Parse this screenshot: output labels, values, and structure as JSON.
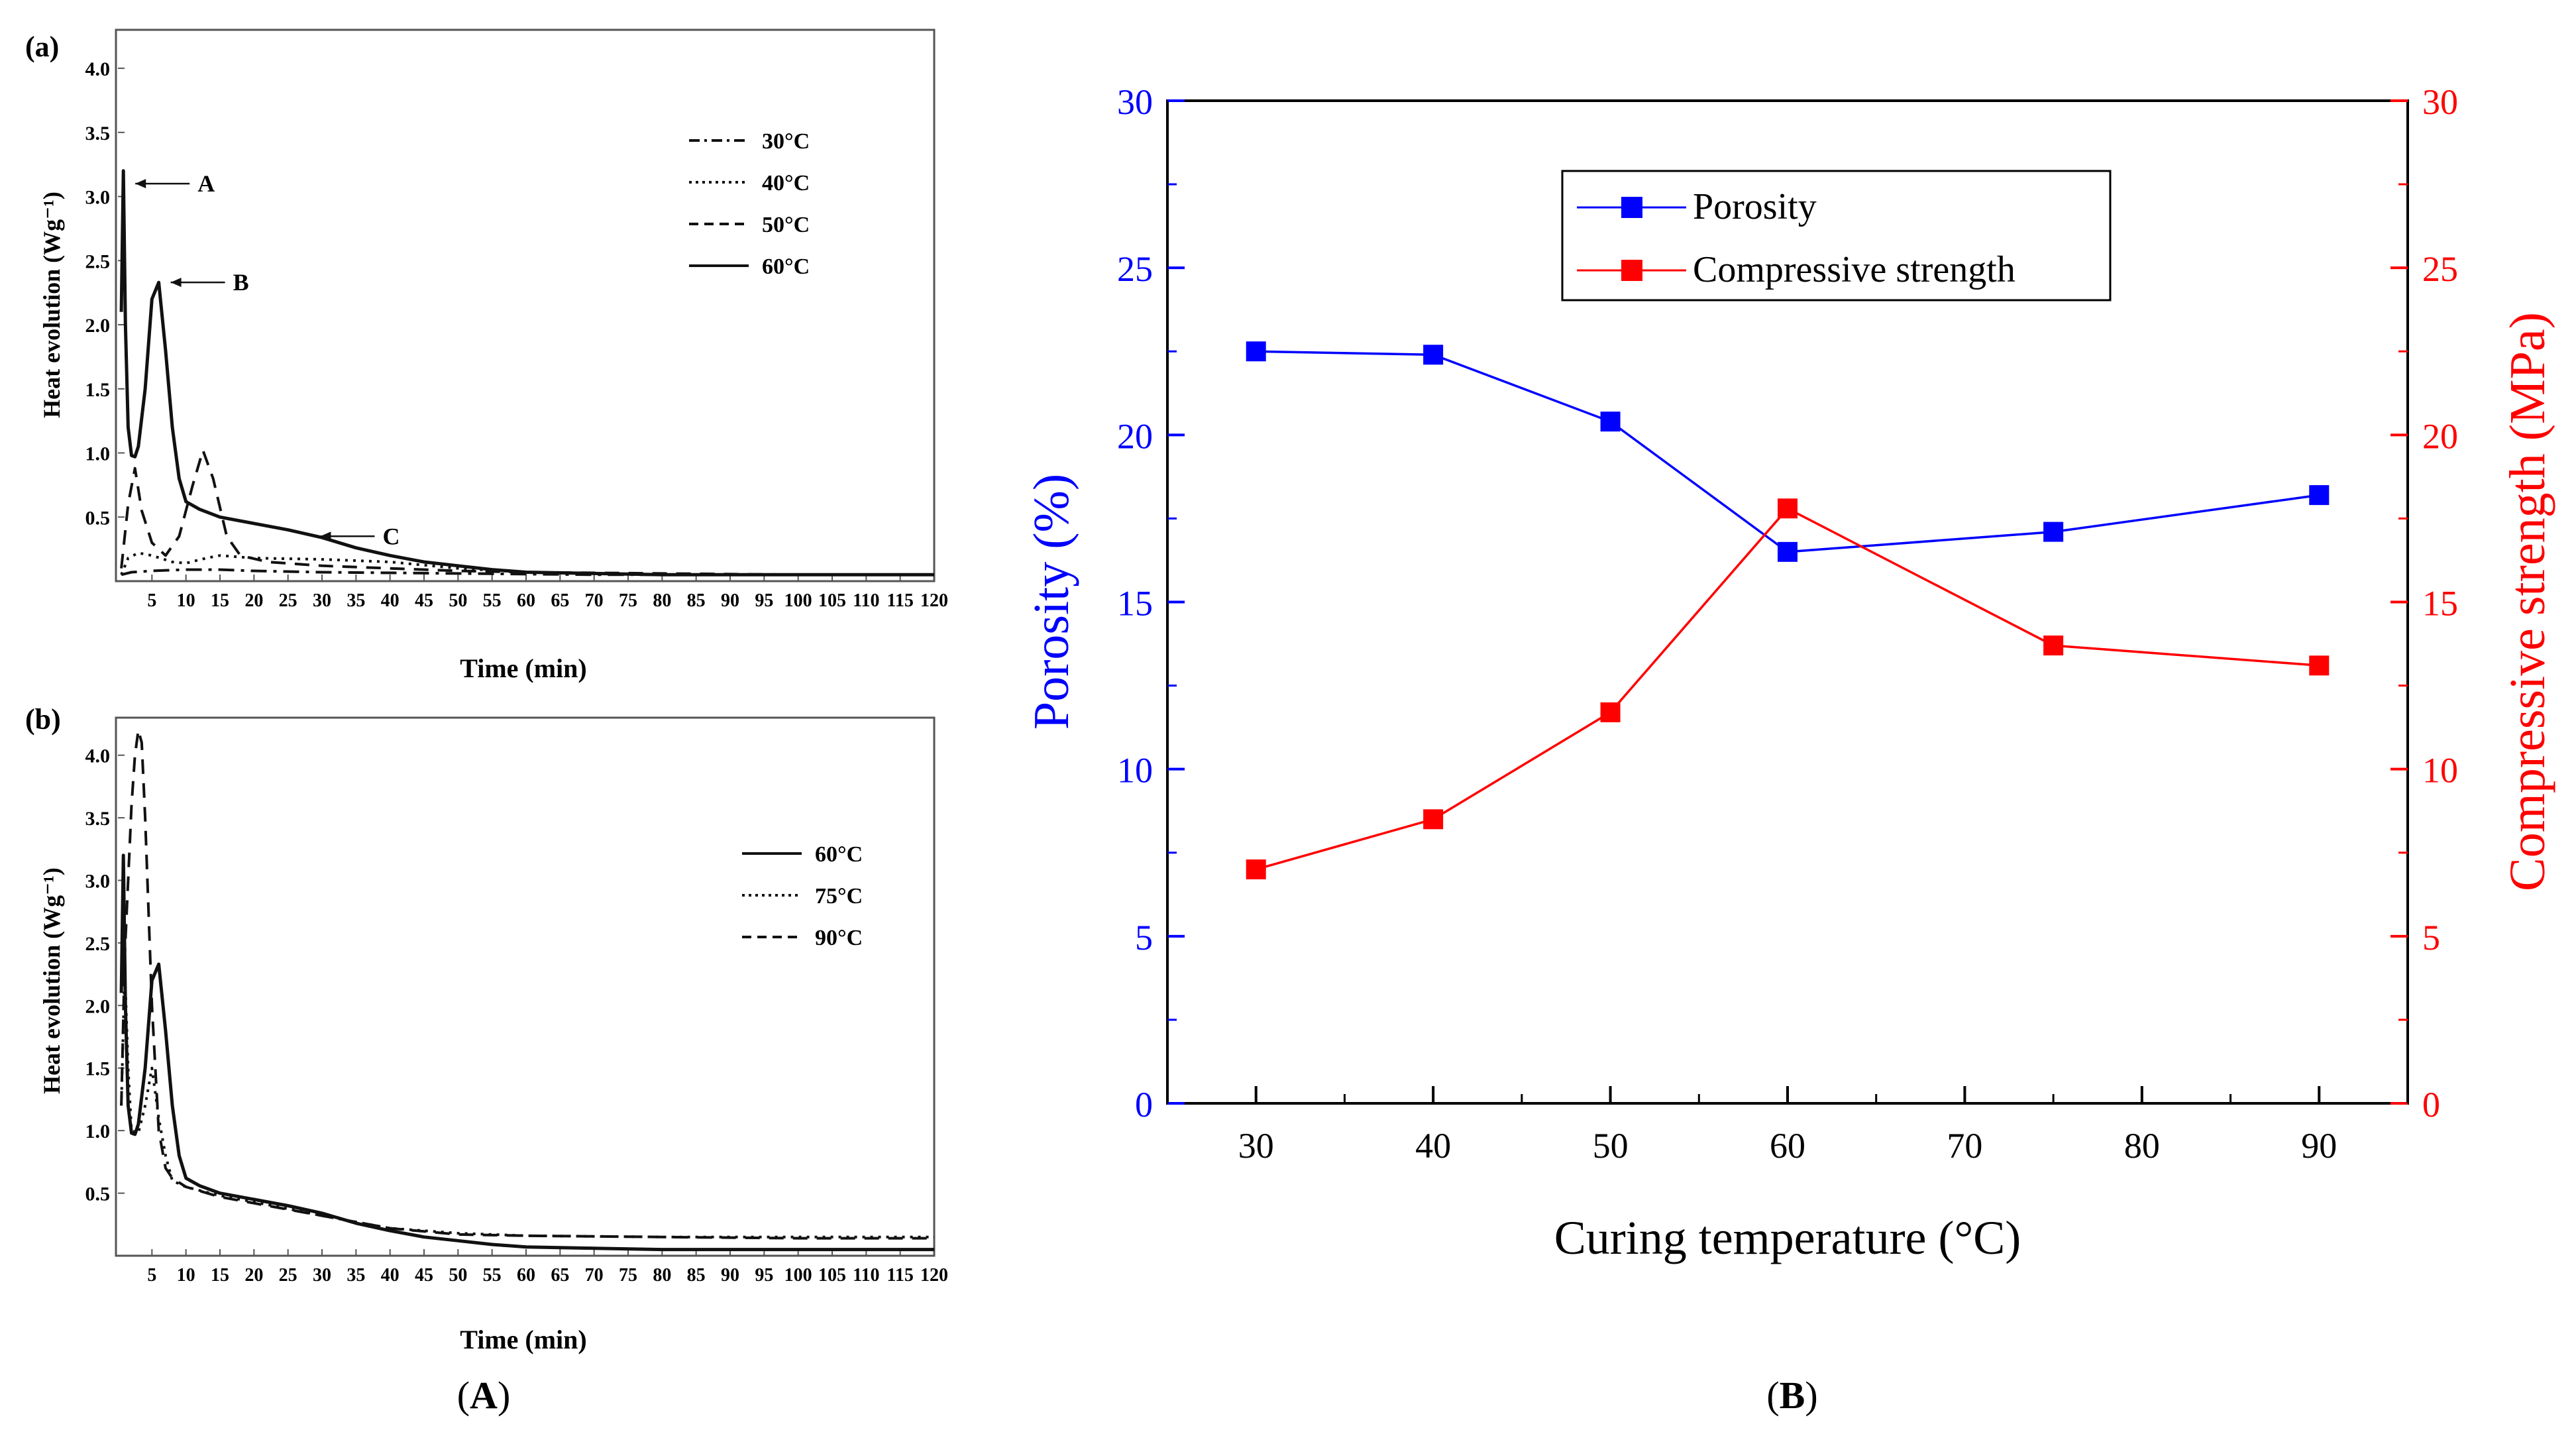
{
  "figure": {
    "panel_A_caption": "A",
    "panel_B_caption": "B",
    "colors": {
      "blue": "#0000ff",
      "red": "#ff0000",
      "black": "#000000"
    }
  },
  "chart_data": [
    {
      "id": "a",
      "type": "line",
      "panel_label": "(a)",
      "xlabel": "Time (min)",
      "ylabel": "Heat evolution (Wg⁻¹)",
      "xlim": [
        0,
        120
      ],
      "ylim": [
        0,
        4.3
      ],
      "xticks": [
        5,
        10,
        15,
        20,
        25,
        30,
        35,
        40,
        45,
        50,
        55,
        60,
        65,
        70,
        75,
        80,
        85,
        90,
        95,
        100,
        105,
        110,
        115,
        120
      ],
      "yticks": [
        0.5,
        1.0,
        1.5,
        2.0,
        2.5,
        3.0,
        3.5,
        4.0
      ],
      "legend": {
        "position": "top-right"
      },
      "series": [
        {
          "name": "30°C",
          "style": "dashdot",
          "x": [
            0.5,
            2,
            5,
            10,
            15,
            20,
            30,
            50,
            70,
            90,
            120
          ],
          "y": [
            0.05,
            0.07,
            0.08,
            0.09,
            0.09,
            0.08,
            0.07,
            0.06,
            0.05,
            0.05,
            0.05
          ]
        },
        {
          "name": "40°C",
          "style": "dotted",
          "x": [
            0.5,
            1.5,
            3,
            5,
            8,
            10,
            13,
            15,
            20,
            30,
            40,
            50,
            60,
            80,
            100,
            120
          ],
          "y": [
            0.05,
            0.18,
            0.22,
            0.2,
            0.15,
            0.14,
            0.18,
            0.2,
            0.18,
            0.17,
            0.15,
            0.1,
            0.07,
            0.05,
            0.05,
            0.05
          ]
        },
        {
          "name": "50°C",
          "style": "dashed",
          "x": [
            0.5,
            1.5,
            2.5,
            3.5,
            5,
            7,
            9,
            11,
            12.5,
            14,
            16,
            18,
            22,
            30,
            40,
            50,
            60,
            80,
            100,
            120
          ],
          "y": [
            0.1,
            0.6,
            0.88,
            0.55,
            0.3,
            0.2,
            0.35,
            0.75,
            1.02,
            0.8,
            0.35,
            0.2,
            0.15,
            0.12,
            0.1,
            0.08,
            0.07,
            0.06,
            0.05,
            0.05
          ]
        },
        {
          "name": "60°C",
          "style": "solid",
          "x": [
            0.5,
            0.8,
            1.1,
            1.5,
            2,
            2.5,
            3,
            4,
            5,
            6,
            7,
            8,
            9,
            10,
            12,
            15,
            20,
            25,
            30,
            35,
            40,
            45,
            50,
            55,
            60,
            70,
            80,
            90,
            100,
            110,
            120
          ],
          "y": [
            2.1,
            3.2,
            2.0,
            1.2,
            0.98,
            0.97,
            1.05,
            1.5,
            2.2,
            2.33,
            1.8,
            1.2,
            0.8,
            0.62,
            0.56,
            0.5,
            0.45,
            0.4,
            0.34,
            0.26,
            0.2,
            0.15,
            0.12,
            0.09,
            0.07,
            0.06,
            0.05,
            0.05,
            0.05,
            0.05,
            0.05
          ]
        }
      ],
      "annotations": [
        {
          "text": "A",
          "x": 0.8,
          "y": 3.1
        },
        {
          "text": "B",
          "x": 6,
          "y": 2.33
        },
        {
          "text": "C",
          "x": 28,
          "y": 0.35
        }
      ]
    },
    {
      "id": "b",
      "type": "line",
      "panel_label": "(b)",
      "xlabel": "Time (min)",
      "ylabel": "Heat   evolution   (Wg⁻¹)",
      "xlim": [
        0,
        120
      ],
      "ylim": [
        0,
        4.3
      ],
      "xticks": [
        5,
        10,
        15,
        20,
        25,
        30,
        35,
        40,
        45,
        50,
        55,
        60,
        65,
        70,
        75,
        80,
        85,
        90,
        95,
        100,
        105,
        110,
        115,
        120
      ],
      "yticks": [
        0.5,
        1.0,
        1.5,
        2.0,
        2.5,
        3.0,
        3.5,
        4.0
      ],
      "legend": {
        "position": "top-right"
      },
      "series": [
        {
          "name": "60°C",
          "style": "solid",
          "x": [
            0.5,
            0.8,
            1.1,
            1.5,
            2,
            2.5,
            3,
            4,
            5,
            6,
            7,
            8,
            9,
            10,
            12,
            15,
            20,
            25,
            30,
            35,
            40,
            45,
            50,
            55,
            60,
            70,
            80,
            90,
            100,
            110,
            120
          ],
          "y": [
            2.1,
            3.2,
            2.0,
            1.2,
            0.98,
            0.97,
            1.05,
            1.5,
            2.2,
            2.33,
            1.8,
            1.2,
            0.8,
            0.62,
            0.56,
            0.5,
            0.45,
            0.4,
            0.34,
            0.26,
            0.2,
            0.15,
            0.12,
            0.09,
            0.07,
            0.06,
            0.05,
            0.05,
            0.05,
            0.05,
            0.05
          ]
        },
        {
          "name": "75°C",
          "style": "dotted",
          "x": [
            0.5,
            1,
            1.5,
            2,
            3,
            4,
            5,
            6,
            7,
            8,
            10,
            15,
            20,
            30,
            40,
            50,
            60,
            80,
            100,
            120
          ],
          "y": [
            1.2,
            2.3,
            1.5,
            1.0,
            0.98,
            1.2,
            1.5,
            1.1,
            0.8,
            0.6,
            0.55,
            0.48,
            0.43,
            0.32,
            0.22,
            0.18,
            0.16,
            0.15,
            0.15,
            0.15
          ]
        },
        {
          "name": "90°C",
          "style": "dashed",
          "x": [
            0.5,
            1,
            1.5,
            2,
            2.5,
            3,
            3.5,
            4,
            5,
            6,
            7,
            8,
            10,
            15,
            20,
            30,
            40,
            50,
            60,
            80,
            100,
            120
          ],
          "y": [
            1.2,
            2.4,
            3.0,
            3.6,
            4.0,
            4.2,
            4.1,
            3.5,
            2.0,
            1.0,
            0.7,
            0.62,
            0.55,
            0.47,
            0.42,
            0.32,
            0.22,
            0.17,
            0.16,
            0.15,
            0.14,
            0.14
          ]
        }
      ]
    },
    {
      "id": "B",
      "type": "line",
      "xlabel": "Curing temperature (°C)",
      "ylabel_left": "Porosity (%)",
      "ylabel_right": "Compressive strength (MPa)",
      "xlim": [
        25,
        95
      ],
      "ylim_left": [
        0,
        30
      ],
      "ylim_right": [
        0,
        30
      ],
      "xticks": [
        30,
        40,
        50,
        60,
        70,
        80,
        90
      ],
      "yticks_left": [
        0,
        5,
        10,
        15,
        20,
        25,
        30
      ],
      "yticks_right": [
        0,
        5,
        10,
        15,
        20,
        25,
        30
      ],
      "legend": {
        "position": "top-center"
      },
      "series": [
        {
          "name": "Porosity",
          "axis": "left",
          "color": "#0000ff",
          "marker": "square",
          "x": [
            30,
            40,
            50,
            60,
            75,
            90
          ],
          "y": [
            22.5,
            22.4,
            20.4,
            16.5,
            17.1,
            18.2
          ]
        },
        {
          "name": "Compressive strength",
          "axis": "right",
          "color": "#ff0000",
          "marker": "square",
          "x": [
            30,
            40,
            50,
            60,
            75,
            90
          ],
          "y": [
            7.0,
            8.5,
            11.7,
            17.8,
            13.7,
            13.1
          ]
        }
      ]
    }
  ]
}
